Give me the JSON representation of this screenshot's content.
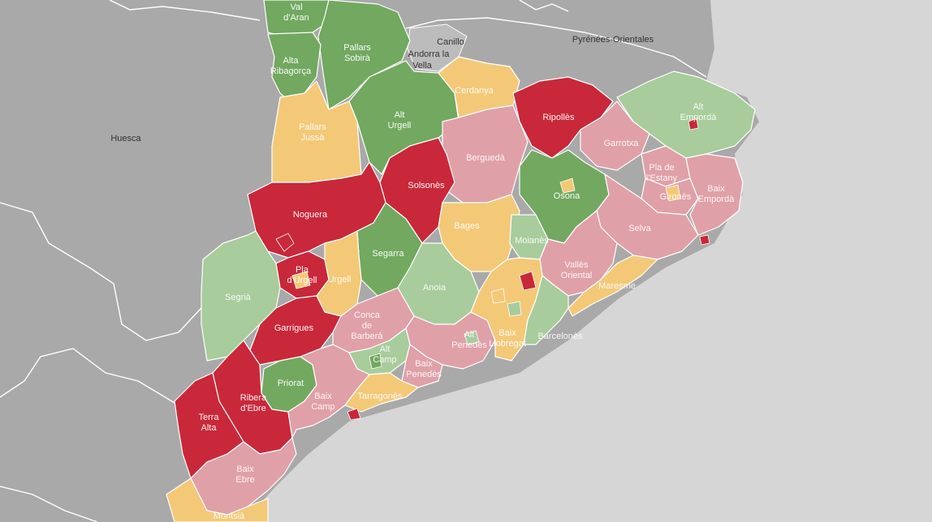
{
  "colors": {
    "background": "#cfcfcf",
    "sea": "#d6d6d6",
    "land": "#a9a9a9",
    "dark_red": "#c8283a",
    "light_red": "#e0a0a8",
    "orange": "#f3c978",
    "light_green": "#a8cc9c",
    "dark_green": "#72a860"
  },
  "places": {
    "huesca": "Huesca",
    "canillo": "Canillo",
    "andorra_a": "Andorra la",
    "andorra_b": "Vella",
    "pyrenees": "Pyrénées-Orientales"
  },
  "comarques": [
    {
      "id": "val-daran",
      "lines": [
        "Val",
        "d'Aran"
      ],
      "level": "dark_green"
    },
    {
      "id": "pallars-sobira",
      "lines": [
        "Pallars",
        "Sobirà"
      ],
      "level": "dark_green"
    },
    {
      "id": "alta-ribagorca",
      "lines": [
        "Alta",
        "Ribagorça"
      ],
      "level": "dark_green"
    },
    {
      "id": "alt-urgell",
      "lines": [
        "Alt",
        "Urgell"
      ],
      "level": "dark_green"
    },
    {
      "id": "cerdanya",
      "lines": [
        "Cerdanya"
      ],
      "level": "orange"
    },
    {
      "id": "pallars-jussa",
      "lines": [
        "Pallars",
        "Jussà"
      ],
      "level": "orange"
    },
    {
      "id": "ripolles",
      "lines": [
        "Ripollès"
      ],
      "level": "dark_red"
    },
    {
      "id": "alt-emporda",
      "lines": [
        "Alt",
        "Empordà"
      ],
      "level": "light_green"
    },
    {
      "id": "bergueda",
      "lines": [
        "Berguedà"
      ],
      "level": "light_red"
    },
    {
      "id": "garrotxa",
      "lines": [
        "Garrotxa"
      ],
      "level": "light_red"
    },
    {
      "id": "solsones",
      "lines": [
        "Solsonès"
      ],
      "level": "dark_red"
    },
    {
      "id": "osona",
      "lines": [
        "Osona"
      ],
      "level": "dark_green"
    },
    {
      "id": "pla-estany",
      "lines": [
        "Pla de",
        "l'Estany"
      ],
      "level": "light_red"
    },
    {
      "id": "girones",
      "lines": [
        "Gironès"
      ],
      "level": "light_red"
    },
    {
      "id": "baix-emporda",
      "lines": [
        "Baix",
        "Empordà"
      ],
      "level": "light_red"
    },
    {
      "id": "noguera",
      "lines": [
        "Noguera"
      ],
      "level": "dark_red"
    },
    {
      "id": "bages",
      "lines": [
        "Bages"
      ],
      "level": "orange"
    },
    {
      "id": "selva",
      "lines": [
        "Selva"
      ],
      "level": "light_red"
    },
    {
      "id": "moianes",
      "lines": [
        "Moianès"
      ],
      "level": "light_green"
    },
    {
      "id": "segarra",
      "lines": [
        "Segarra"
      ],
      "level": "dark_green"
    },
    {
      "id": "pla-urgell",
      "lines": [
        "Pla",
        "d'Urgell"
      ],
      "level": "dark_red"
    },
    {
      "id": "urgell",
      "lines": [
        "Urgell"
      ],
      "level": "orange"
    },
    {
      "id": "segria",
      "lines": [
        "Segrià"
      ],
      "level": "light_green"
    },
    {
      "id": "anoia",
      "lines": [
        "Anoia"
      ],
      "level": "light_green"
    },
    {
      "id": "valles-oriental",
      "lines": [
        "Vallès",
        "Oriental"
      ],
      "level": "light_red"
    },
    {
      "id": "maresme",
      "lines": [
        "Maresme"
      ],
      "level": "orange"
    },
    {
      "id": "garrigues",
      "lines": [
        "Garrigues"
      ],
      "level": "dark_red"
    },
    {
      "id": "conca-barbera",
      "lines": [
        "Conca",
        "de",
        "Barberà"
      ],
      "level": "light_red"
    },
    {
      "id": "alt-penedes",
      "lines": [
        "Alt",
        "Penedès"
      ],
      "level": "light_red"
    },
    {
      "id": "baix-llobregat",
      "lines": [
        "Baix",
        "Llobregat"
      ],
      "level": "orange"
    },
    {
      "id": "alt-camp",
      "lines": [
        "Alt",
        "Camp"
      ],
      "level": "light_green"
    },
    {
      "id": "baix-penedes",
      "lines": [
        "Baix",
        "Penedès"
      ],
      "level": "light_red"
    },
    {
      "id": "priorat",
      "lines": [
        "Priorat"
      ],
      "level": "dark_green"
    },
    {
      "id": "ribera-ebre",
      "lines": [
        "Ribera",
        "d'Ebre"
      ],
      "level": "dark_red"
    },
    {
      "id": "baix-camp",
      "lines": [
        "Baix",
        "Camp"
      ],
      "level": "light_red"
    },
    {
      "id": "tarragones",
      "lines": [
        "Tarragonès"
      ],
      "level": "orange"
    },
    {
      "id": "terra-alta",
      "lines": [
        "Terra",
        "Alta"
      ],
      "level": "dark_red"
    },
    {
      "id": "baix-ebre",
      "lines": [
        "Baix",
        "Ebre"
      ],
      "level": "light_red"
    },
    {
      "id": "montsia",
      "lines": [
        "Montsià"
      ],
      "level": "orange"
    },
    {
      "id": "barcelones",
      "lines": [
        "Barcelonès"
      ],
      "level": "light_green"
    }
  ]
}
